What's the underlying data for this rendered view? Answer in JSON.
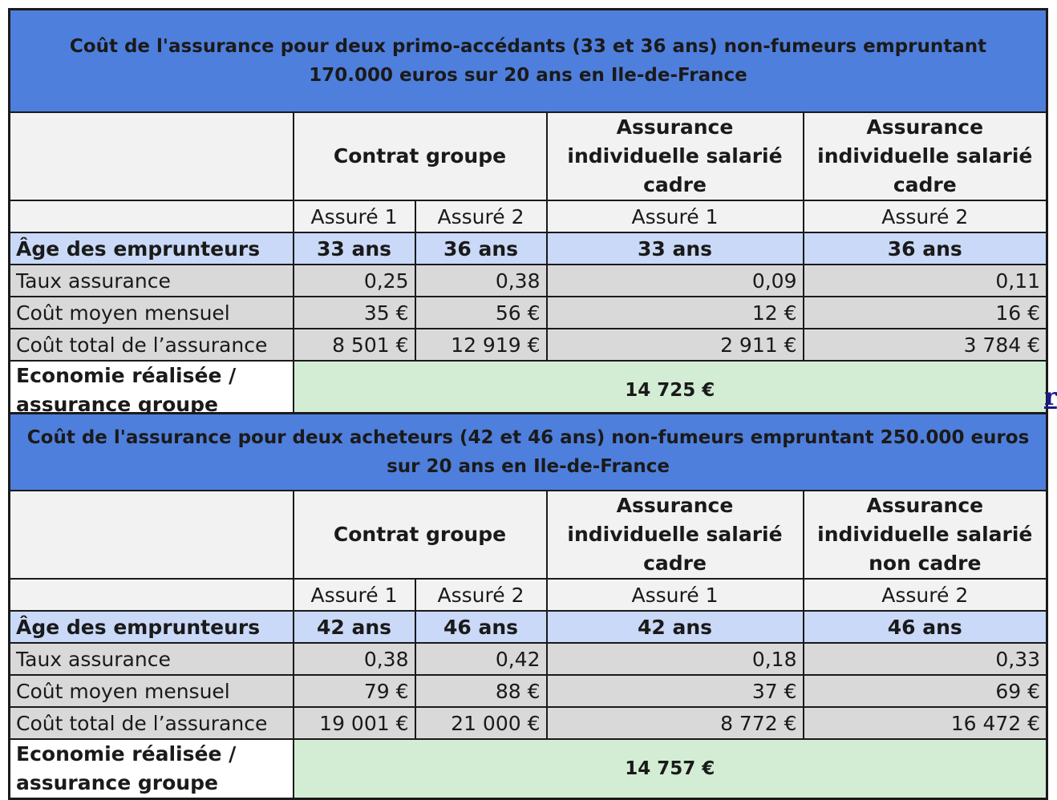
{
  "table1": {
    "title": "Coût de l'assurance pour deux primo-accédants (33 et 36 ans) non-fumeurs empruntant 170.000 euros sur 20 ans  en Ile-de-France",
    "group_header": "Contrat groupe",
    "indiv1_header": "Assurance individuelle salarié cadre",
    "indiv2_header": "Assurance individuelle salarié cadre",
    "sub": [
      "Assuré 1",
      "Assuré 2",
      "Assuré 1",
      "Assuré 2"
    ],
    "age": {
      "label": "Âge des emprunteurs",
      "values": [
        "33 ans",
        "36 ans",
        "33 ans",
        "36 ans"
      ]
    },
    "taux": {
      "label": "Taux assurance",
      "values": [
        "0,25",
        "0,38",
        "0,09",
        "0,11"
      ]
    },
    "mensuel": {
      "label": "Coût moyen mensuel",
      "values": [
        "35 €",
        "56 €",
        "12 €",
        "16 €"
      ]
    },
    "total": {
      "label": "Coût total de l’assurance",
      "values": [
        "8 501 €",
        "12 919 €",
        "2 911 €",
        "3 784 €"
      ]
    },
    "economie": {
      "label": "Economie réalisée / assurance groupe",
      "value": "14 725 €"
    }
  },
  "table2": {
    "title": "Coût de l'assurance pour deux acheteurs (42 et 46 ans) non-fumeurs empruntant 250.000 euros sur 20 ans en Ile-de-France",
    "group_header": "Contrat groupe",
    "indiv1_header": "Assurance individuelle salarié cadre",
    "indiv2_header": "Assurance individuelle salarié non cadre",
    "sub": [
      "Assuré 1",
      "Assuré 2",
      "Assuré 1",
      "Assuré 2"
    ],
    "age": {
      "label": "Âge des emprunteurs",
      "values": [
        "42 ans",
        "46 ans",
        "42 ans",
        "46 ans"
      ]
    },
    "taux": {
      "label": "Taux assurance",
      "values": [
        "0,38",
        "0,42",
        "0,18",
        "0,33"
      ]
    },
    "mensuel": {
      "label": "Coût moyen mensuel",
      "values": [
        "79 €",
        "88 €",
        "37 €",
        "69 €"
      ]
    },
    "total": {
      "label": "Coût total de l’assurance",
      "values": [
        "19 001 €",
        "21 000 €",
        "8 772 €",
        "16 472 €"
      ]
    },
    "economie": {
      "label": "Economie réalisée / assurance groupe",
      "value": "14 757 €"
    }
  },
  "stray_link_text": "r"
}
